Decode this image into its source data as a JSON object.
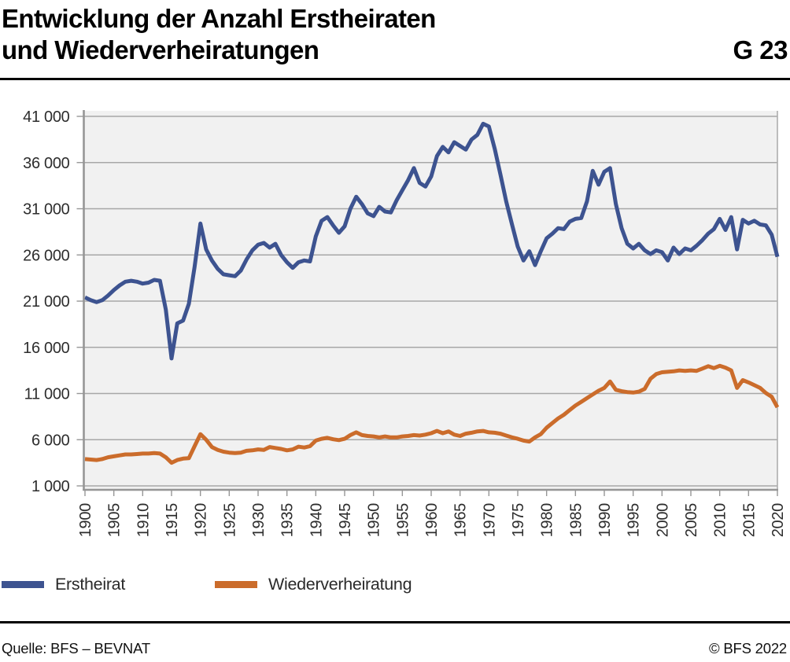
{
  "header": {
    "title_line1": "Entwicklung der Anzahl Erstheiraten",
    "title_line2": "und Wiederverheiratungen",
    "figure_code": "G 23"
  },
  "legend": [
    {
      "label": "Erstheirat",
      "color": "#3d5390"
    },
    {
      "label": "Wiederverheiratung",
      "color": "#cb6c2b"
    }
  ],
  "footer": {
    "source": "Quelle: BFS – BEVNAT",
    "copyright": "© BFS 2022"
  },
  "colors": {
    "erstheirat": "#3d5390",
    "wiederverheiratung": "#cb6c2b",
    "plot_background": "#f1f1f1",
    "gridline": "#a7a7a7",
    "axis": "#969696",
    "frame_right": "#aeaeae"
  },
  "chart_data": {
    "type": "line",
    "title": "Entwicklung der Anzahl Erstheiraten und Wiederverheiratungen",
    "xlabel": "",
    "ylabel": "",
    "grid": "horizontal",
    "legend_position": "bottom-left",
    "x_range": [
      1900,
      2020
    ],
    "y_range_plotted": [
      1000,
      41000
    ],
    "x_tick_years": [
      1900,
      1905,
      1910,
      1915,
      1920,
      1925,
      1930,
      1935,
      1940,
      1945,
      1950,
      1955,
      1960,
      1965,
      1970,
      1975,
      1980,
      1985,
      1990,
      1995,
      2000,
      2005,
      2010,
      2015,
      2020
    ],
    "y_ticks": [
      {
        "value": 41000,
        "label": "41 000"
      },
      {
        "value": 36000,
        "label": "36 000"
      },
      {
        "value": 31000,
        "label": "31 000"
      },
      {
        "value": 26000,
        "label": "26 000"
      },
      {
        "value": 21000,
        "label": "21 000"
      },
      {
        "value": 16000,
        "label": "16 000"
      },
      {
        "value": 11000,
        "label": "11 000"
      },
      {
        "value": 6000,
        "label": "6 000"
      },
      {
        "value": 1000,
        "label": "1 000"
      }
    ],
    "x_start": 1900,
    "x_step": 1,
    "series": [
      {
        "name": "Erstheirat",
        "color": "#3d5390",
        "values": [
          21400,
          21100,
          20900,
          21100,
          21600,
          22200,
          22700,
          23100,
          23200,
          23100,
          22900,
          23000,
          23300,
          23200,
          20100,
          14800,
          18600,
          18900,
          20700,
          24700,
          29400,
          26600,
          25400,
          24500,
          23900,
          23800,
          23700,
          24300,
          25500,
          26500,
          27100,
          27300,
          26800,
          27200,
          26000,
          25200,
          24600,
          25200,
          25400,
          25300,
          28000,
          29700,
          30100,
          29200,
          28400,
          29100,
          31000,
          32300,
          31500,
          30500,
          30200,
          31200,
          30700,
          30600,
          31900,
          33000,
          34100,
          35400,
          33800,
          33400,
          34500,
          36700,
          37700,
          37100,
          38200,
          37800,
          37400,
          38500,
          39000,
          40200,
          39900,
          37500,
          34700,
          31800,
          29300,
          26900,
          25400,
          26400,
          24900,
          26400,
          27800,
          28300,
          28900,
          28800,
          29600,
          29900,
          30000,
          31800,
          35100,
          33600,
          35000,
          35400,
          31500,
          28900,
          27200,
          26700,
          27200,
          26500,
          26100,
          26500,
          26300,
          25400,
          26800,
          26100,
          26700,
          26500,
          27000,
          27600,
          28300,
          28800,
          29900,
          28700,
          30100,
          26600,
          29800,
          29400,
          29700,
          29300,
          29200,
          28200,
          25800
        ]
      },
      {
        "name": "Wiederverheiratung",
        "color": "#cb6c2b",
        "values": [
          3900,
          3850,
          3800,
          3900,
          4100,
          4200,
          4300,
          4400,
          4400,
          4450,
          4500,
          4500,
          4550,
          4500,
          4100,
          3500,
          3800,
          3950,
          4000,
          5300,
          6600,
          6000,
          5200,
          4900,
          4700,
          4600,
          4550,
          4600,
          4800,
          4850,
          4950,
          4900,
          5200,
          5100,
          5000,
          4850,
          4950,
          5250,
          5150,
          5300,
          5900,
          6100,
          6200,
          6050,
          5950,
          6100,
          6500,
          6800,
          6500,
          6400,
          6350,
          6250,
          6350,
          6250,
          6250,
          6350,
          6400,
          6500,
          6450,
          6550,
          6700,
          6950,
          6700,
          6900,
          6550,
          6400,
          6650,
          6750,
          6900,
          6950,
          6800,
          6750,
          6650,
          6450,
          6250,
          6100,
          5900,
          5800,
          6250,
          6600,
          7300,
          7800,
          8300,
          8700,
          9200,
          9700,
          10100,
          10500,
          10900,
          11300,
          11600,
          12300,
          11400,
          11250,
          11150,
          11100,
          11200,
          11500,
          12600,
          13100,
          13300,
          13350,
          13400,
          13500,
          13450,
          13500,
          13450,
          13700,
          13950,
          13750,
          14000,
          13800,
          13500,
          11600,
          12450,
          12200,
          11900,
          11600,
          11050,
          10650,
          9500
        ]
      }
    ]
  }
}
